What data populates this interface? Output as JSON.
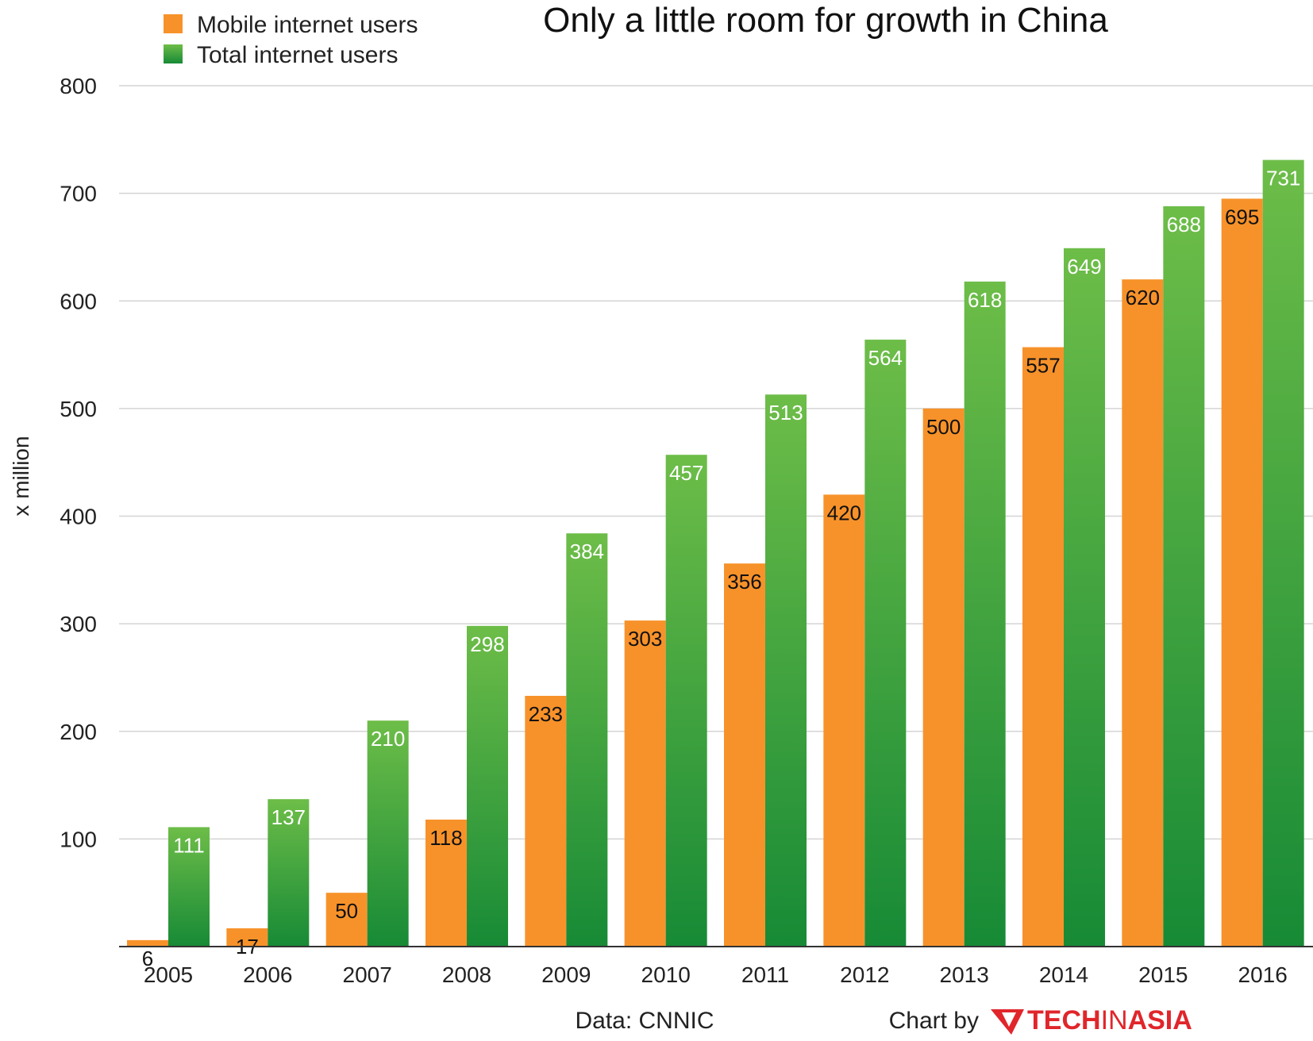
{
  "chart_data": {
    "type": "bar",
    "title": "Only a little room for growth in China",
    "xlabel": "",
    "ylabel": "x million",
    "ylim": [
      0,
      800
    ],
    "yticks": [
      100,
      200,
      300,
      400,
      500,
      600,
      700,
      800
    ],
    "grid": true,
    "legend_position": "top-left",
    "categories": [
      "2005",
      "2006",
      "2007",
      "2008",
      "2009",
      "2010",
      "2011",
      "2012",
      "2013",
      "2014",
      "2015",
      "2016"
    ],
    "series": [
      {
        "name": "Mobile internet users",
        "color": "#f7922a",
        "values": [
          6,
          17,
          50,
          118,
          233,
          303,
          356,
          420,
          500,
          557,
          620,
          695
        ]
      },
      {
        "name": "Total internet users",
        "color": "#3fa743",
        "values": [
          111,
          137,
          210,
          298,
          384,
          457,
          513,
          564,
          618,
          649,
          688,
          731
        ]
      }
    ]
  },
  "footer": {
    "source": "Data: CNNIC",
    "credit": "Chart by",
    "brand_parts": [
      "TECH",
      "IN",
      "ASIA"
    ],
    "brand_color": "#e0262b"
  }
}
